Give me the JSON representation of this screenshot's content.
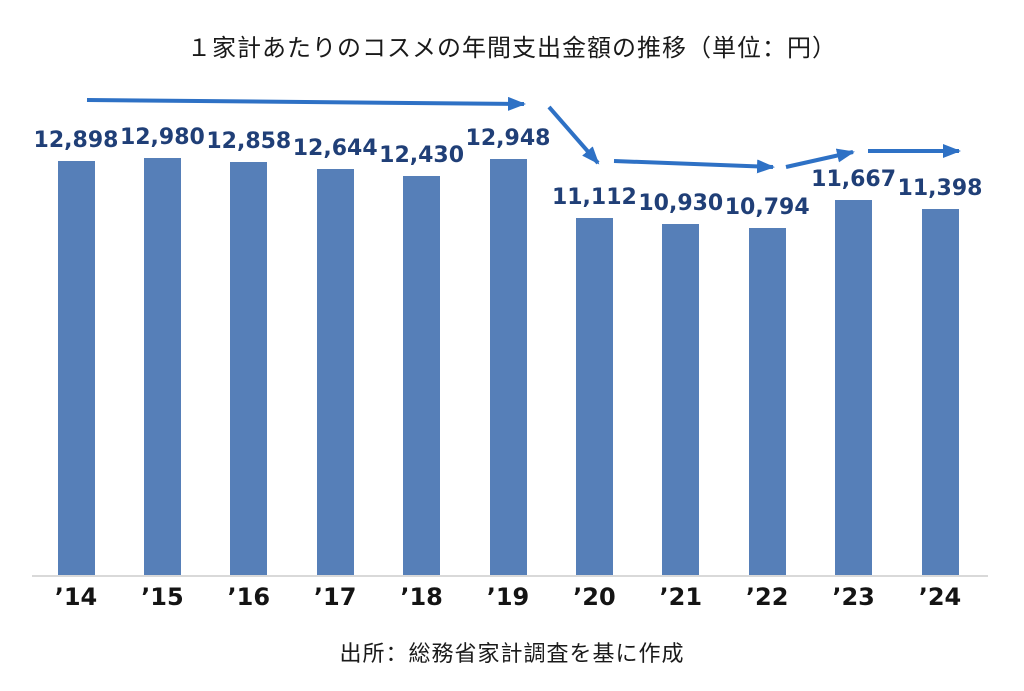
{
  "chart_data": {
    "type": "bar",
    "title": "１家計あたりのコスメの年間支出金額の推移（単位：円）",
    "source": "出所：総務省家計調査を基に作成",
    "unit": "円",
    "categories": [
      "’14",
      "’15",
      "’16",
      "’17",
      "’18",
      "’19",
      "’20",
      "’21",
      "’22",
      "’23",
      "’24"
    ],
    "values": [
      12898,
      12980,
      12858,
      12644,
      12430,
      12948,
      11112,
      10930,
      10794,
      11667,
      11398
    ],
    "value_labels": [
      "12,898",
      "12,980",
      "12,858",
      "12,644",
      "12,430",
      "12,948",
      "11,112",
      "10,930",
      "10,794",
      "11,667",
      "11,398"
    ],
    "ylim": [
      0,
      13000
    ],
    "grid": false,
    "legend": false,
    "colors": {
      "bar": "#567fb8",
      "value_label": "#203f77",
      "arrow": "#2e71c5",
      "axis_line": "#d9d9d9",
      "axis_label": "#141414",
      "text": "#1a1a1a"
    },
    "annotations": [
      {
        "name": "flat-trend-arrow-14-19",
        "from": [
          87,
          100
        ],
        "to": [
          524,
          104
        ]
      },
      {
        "name": "drop-arrow-19-20",
        "from": [
          549,
          107
        ],
        "to": [
          598,
          163
        ]
      },
      {
        "name": "flat-trend-arrow-20-22",
        "from": [
          614,
          161
        ],
        "to": [
          773,
          167
        ]
      },
      {
        "name": "rise-arrow-22-23",
        "from": [
          786,
          167
        ],
        "to": [
          853,
          152
        ]
      },
      {
        "name": "flat-trend-arrow-23-24",
        "from": [
          868,
          151
        ],
        "to": [
          959,
          151
        ]
      }
    ]
  }
}
